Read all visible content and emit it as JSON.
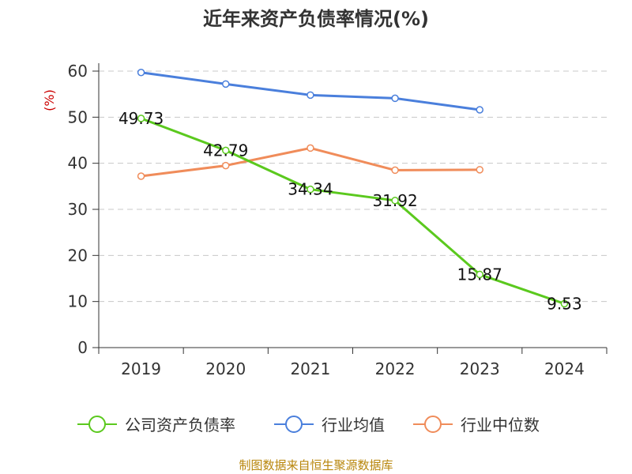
{
  "title": "近年来资产负债率情况(%)",
  "footer": "制图数据来自恒生聚源数据库",
  "chart_data": {
    "type": "line",
    "title": "近年来资产负债率情况(%)",
    "ylabel": "(%)",
    "xlabel": "",
    "categories": [
      "2019",
      "2020",
      "2021",
      "2022",
      "2023",
      "2024"
    ],
    "ylim": [
      0,
      60
    ],
    "yticks": [
      0,
      10,
      20,
      30,
      40,
      50,
      60
    ],
    "grid": true,
    "legend_position": "bottom",
    "series": [
      {
        "name": "公司资产负债率",
        "color": "#5bc91e",
        "values": [
          49.73,
          42.79,
          34.34,
          31.92,
          15.87,
          9.53
        ],
        "labels": [
          "49.73",
          "42.79",
          "34.34",
          "31.92",
          "15.87",
          "9.53"
        ]
      },
      {
        "name": "行业均值",
        "color": "#4a7fdc",
        "values": [
          59.7,
          57.2,
          54.8,
          54.1,
          51.6,
          null
        ]
      },
      {
        "name": "行业中位数",
        "color": "#f08c5a",
        "values": [
          37.2,
          39.5,
          43.3,
          38.5,
          38.6,
          null
        ]
      }
    ]
  }
}
